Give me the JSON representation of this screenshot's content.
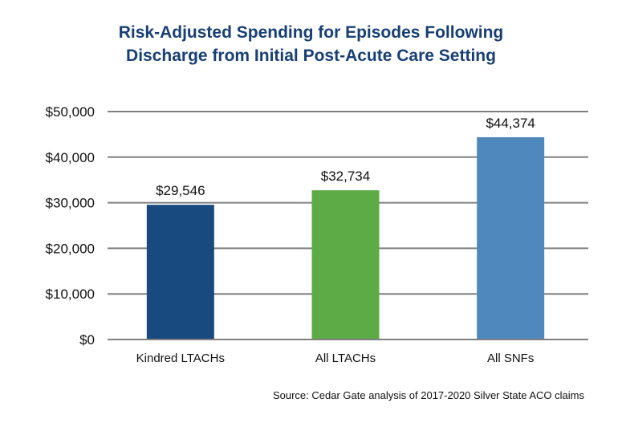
{
  "chart_data": {
    "type": "bar",
    "title_lines": [
      "Risk-Adjusted Spending for Episodes Following",
      "Discharge from Initial Post-Acute Care Setting"
    ],
    "categories": [
      "Kindred LTACHs",
      "All LTACHs",
      "All SNFs"
    ],
    "values": [
      29546,
      32734,
      44374
    ],
    "data_labels": [
      "$29,546",
      "$32,734",
      "$44,374"
    ],
    "colors": [
      "#184a80",
      "#5dab47",
      "#4f88bc"
    ],
    "xlabel": "",
    "ylabel": "",
    "ylim": [
      0,
      50000
    ],
    "yticks": [
      0,
      10000,
      20000,
      30000,
      40000,
      50000
    ],
    "ytick_labels": [
      "$0",
      "$10,000",
      "$20,000",
      "$30,000",
      "$40,000",
      "$50,000"
    ],
    "grid": true,
    "legend": "none",
    "source": "Source: Cedar Gate analysis of 2017-2020 Silver State ACO claims"
  }
}
